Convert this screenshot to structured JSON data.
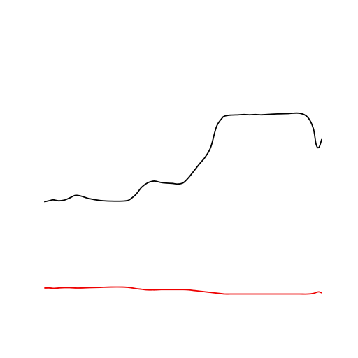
{
  "chart_data": {
    "type": "line",
    "grid": false,
    "legend": "none",
    "x": [
      0.0,
      0.02,
      0.03,
      0.05,
      0.07,
      0.09,
      0.11,
      0.13,
      0.16,
      0.2,
      0.24,
      0.28,
      0.3,
      0.31,
      0.33,
      0.35,
      0.37,
      0.39,
      0.4,
      0.42,
      0.44,
      0.46,
      0.48,
      0.5,
      0.52,
      0.54,
      0.56,
      0.58,
      0.6,
      0.62,
      0.64,
      0.65,
      0.67,
      0.7,
      0.72,
      0.74,
      0.76,
      0.78,
      0.8,
      0.84,
      0.88,
      0.92,
      0.95,
      0.97,
      0.98,
      0.99,
      1.0
    ],
    "xlim": [
      0,
      1
    ],
    "ylim": [
      0,
      1
    ],
    "series": [
      {
        "color": "#000000",
        "values": [
          0.428,
          0.432,
          0.434,
          0.431,
          0.433,
          0.44,
          0.448,
          0.446,
          0.438,
          0.432,
          0.43,
          0.43,
          0.432,
          0.437,
          0.452,
          0.474,
          0.487,
          0.493,
          0.493,
          0.489,
          0.487,
          0.486,
          0.484,
          0.488,
          0.505,
          0.527,
          0.549,
          0.57,
          0.602,
          0.665,
          0.692,
          0.699,
          0.702,
          0.703,
          0.704,
          0.703,
          0.704,
          0.703,
          0.704,
          0.706,
          0.707,
          0.708,
          0.695,
          0.66,
          0.61,
          0.6,
          0.625
        ]
      },
      {
        "color": "#ee0000",
        "values": [
          0.155,
          0.155,
          0.154,
          0.155,
          0.156,
          0.156,
          0.155,
          0.155,
          0.156,
          0.157,
          0.158,
          0.158,
          0.157,
          0.156,
          0.153,
          0.151,
          0.149,
          0.149,
          0.149,
          0.15,
          0.15,
          0.15,
          0.15,
          0.15,
          0.149,
          0.147,
          0.145,
          0.143,
          0.141,
          0.139,
          0.137,
          0.136,
          0.136,
          0.136,
          0.136,
          0.136,
          0.136,
          0.136,
          0.136,
          0.136,
          0.136,
          0.136,
          0.136,
          0.138,
          0.141,
          0.143,
          0.14
        ]
      }
    ]
  }
}
